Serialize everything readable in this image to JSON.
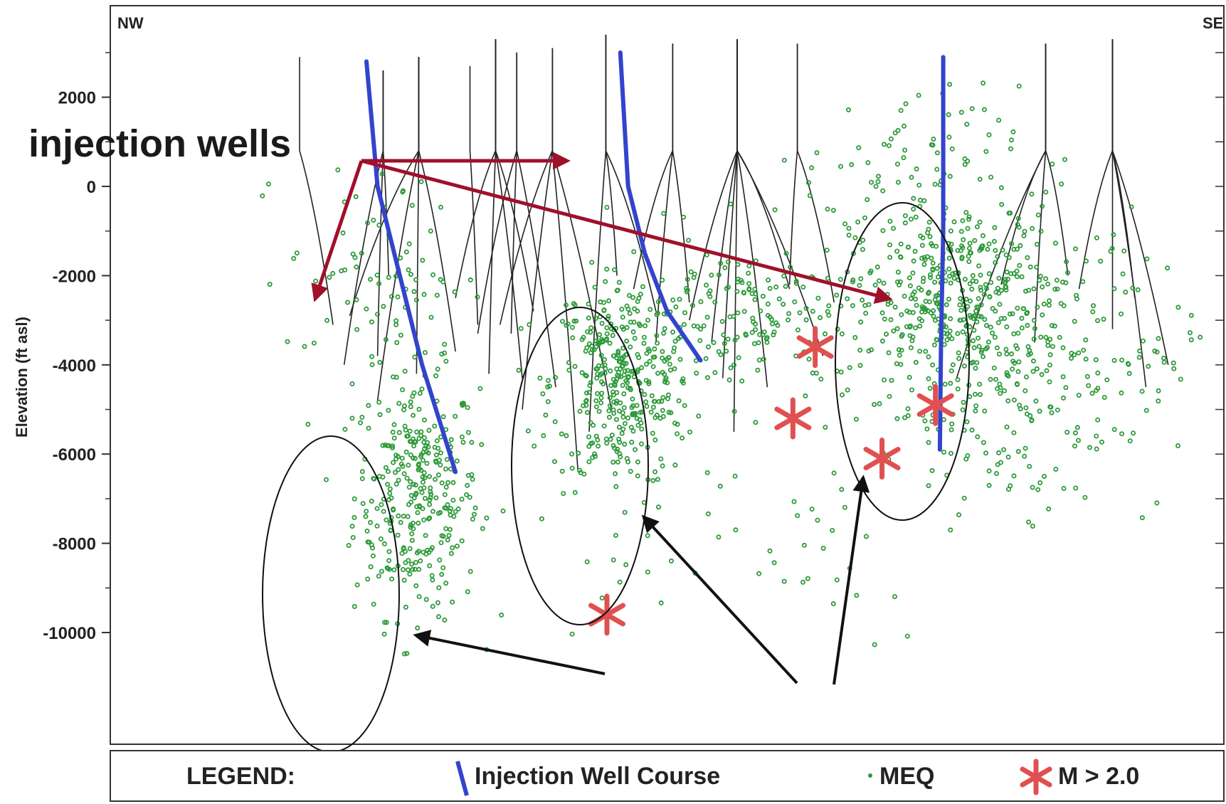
{
  "chart_data": {
    "type": "scatter",
    "corner_labels": {
      "left": "NW",
      "right": "SE"
    },
    "ylabel": "Elevation (ft asl)",
    "ylim": [
      -11000,
      3500
    ],
    "y_ticks": [
      2000,
      0,
      -2000,
      -4000,
      -6000,
      -8000,
      -10000
    ],
    "y_tick_labels": [
      "2000",
      "0",
      "-2000",
      "-4000",
      "-6000",
      "-8000",
      "-10000"
    ],
    "annotation": "injection wells",
    "legend": {
      "title": "LEGEND:",
      "items": [
        {
          "label": "Injection Well Course",
          "marker": "blue-line"
        },
        {
          "label": "MEQ",
          "marker": "green-dot"
        },
        {
          "label": "M > 2.0",
          "marker": "red-star"
        }
      ]
    },
    "colors": {
      "injection_well": "#3344cc",
      "meq": "#2e9a3a",
      "large_event": "#e05050",
      "arrow_red": "#a0102a",
      "well_course": "#222222"
    },
    "injection_wells": [
      {
        "x": [
          0.23,
          0.24,
          0.26,
          0.28,
          0.3,
          0.31
        ],
        "y": [
          2800,
          0,
          -2000,
          -4000,
          -5600,
          -6400
        ]
      },
      {
        "x": [
          0.458,
          0.465,
          0.48,
          0.5,
          0.53
        ],
        "y": [
          3000,
          0,
          -1500,
          -2800,
          -3900
        ]
      },
      {
        "x": [
          0.748,
          0.748,
          0.746,
          0.745
        ],
        "y": [
          2900,
          -1000,
          -3500,
          -5900
        ]
      }
    ],
    "large_events": [
      {
        "x": 0.446,
        "y": -9600
      },
      {
        "x": 0.633,
        "y": -3600
      },
      {
        "x": 0.613,
        "y": -5200
      },
      {
        "x": 0.693,
        "y": -6100
      },
      {
        "x": 0.741,
        "y": -4900
      }
    ],
    "meq_clusters": [
      {
        "cx": 0.275,
        "cy": -6900,
        "sx": 0.035,
        "sy": 1700,
        "n": 340
      },
      {
        "cx": 0.46,
        "cy": -4400,
        "sx": 0.04,
        "sy": 1500,
        "n": 380
      },
      {
        "cx": 0.76,
        "cy": -2600,
        "sx": 0.06,
        "sy": 1500,
        "n": 480
      },
      {
        "cx": 0.58,
        "cy": -3000,
        "sx": 0.07,
        "sy": 1200,
        "n": 180
      },
      {
        "cx": 0.82,
        "cy": -5200,
        "sx": 0.08,
        "sy": 1300,
        "n": 120
      },
      {
        "cx": 0.72,
        "cy": 800,
        "sx": 0.06,
        "sy": 900,
        "n": 60
      },
      {
        "cx": 0.24,
        "cy": -2000,
        "sx": 0.05,
        "sy": 1400,
        "n": 80
      },
      {
        "cx": 0.9,
        "cy": -3000,
        "sx": 0.05,
        "sy": 1500,
        "n": 60
      },
      {
        "cx": 0.55,
        "cy": -8000,
        "sx": 0.15,
        "sy": 1500,
        "n": 40
      }
    ],
    "production_wells": [
      {
        "top_x": 0.17,
        "top_y": 2900,
        "branches": [
          [
            0.2,
            -3100
          ]
        ]
      },
      {
        "top_x": 0.245,
        "top_y": 2600,
        "branches": [
          [
            0.21,
            -4000
          ],
          [
            0.24,
            -3800
          ],
          [
            0.25,
            -2000
          ]
        ]
      },
      {
        "top_x": 0.277,
        "top_y": 2900,
        "branches": [
          [
            0.24,
            -4800
          ],
          [
            0.31,
            -3700
          ],
          [
            0.215,
            -2900
          ],
          [
            0.275,
            -4200
          ]
        ]
      },
      {
        "top_x": 0.323,
        "top_y": 2700,
        "branches": [
          [
            0.33,
            -3100
          ]
        ]
      },
      {
        "top_x": 0.346,
        "top_y": 3300,
        "branches": [
          [
            0.31,
            -2500
          ],
          [
            0.37,
            -4300
          ],
          [
            0.34,
            -4200
          ],
          [
            0.38,
            -2800
          ]
        ]
      },
      {
        "top_x": 0.365,
        "top_y": 3000,
        "branches": [
          [
            0.33,
            -3300
          ],
          [
            0.4,
            -4500
          ],
          [
            0.36,
            -3300
          ]
        ]
      },
      {
        "top_x": 0.397,
        "top_y": 3100,
        "branches": [
          [
            0.35,
            -3100
          ],
          [
            0.45,
            -5000
          ],
          [
            0.42,
            -6400
          ],
          [
            0.37,
            -5000
          ]
        ]
      },
      {
        "top_x": 0.445,
        "top_y": 3400,
        "branches": [
          [
            0.43,
            -5500
          ],
          [
            0.455,
            -2000
          ],
          [
            0.49,
            -2800
          ]
        ]
      },
      {
        "top_x": 0.505,
        "top_y": 3200,
        "branches": [
          [
            0.52,
            -2600
          ],
          [
            0.49,
            -3500
          ],
          [
            0.47,
            -2300
          ]
        ]
      },
      {
        "top_x": 0.563,
        "top_y": 3300,
        "branches": [
          [
            0.52,
            -3000
          ],
          [
            0.59,
            -4500
          ],
          [
            0.61,
            -2300
          ],
          [
            0.56,
            -5500
          ],
          [
            0.54,
            -3500
          ],
          [
            0.64,
            -3800
          ],
          [
            0.55,
            -4300
          ]
        ]
      },
      {
        "top_x": 0.617,
        "top_y": 3200,
        "branches": [
          [
            0.61,
            -2200
          ],
          [
            0.65,
            -2600
          ]
        ]
      },
      {
        "top_x": 0.84,
        "top_y": 3200,
        "branches": [
          [
            0.8,
            -2200
          ],
          [
            0.83,
            -3500
          ],
          [
            0.76,
            -4300
          ],
          [
            0.86,
            -2000
          ]
        ]
      },
      {
        "top_x": 0.9,
        "top_y": 3300,
        "branches": [
          [
            0.87,
            -2300
          ],
          [
            0.93,
            -4500
          ],
          [
            0.9,
            -3200
          ],
          [
            0.95,
            -4000
          ],
          [
            0.92,
            -2500
          ]
        ]
      }
    ]
  }
}
